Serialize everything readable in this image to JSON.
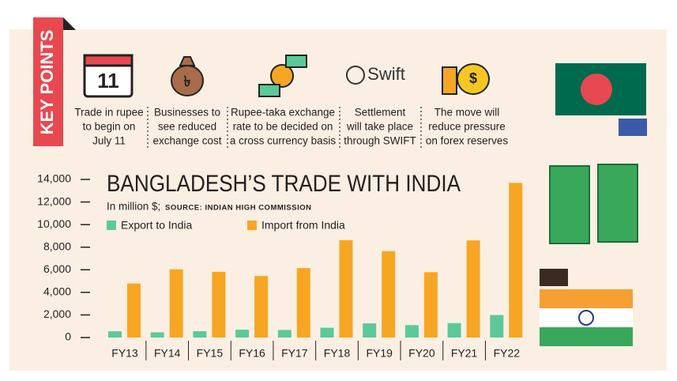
{
  "key_points": {
    "label": "KEY POINTS",
    "items": [
      {
        "icon_text": "11",
        "text": [
          "Trade in rupee",
          "to begin on",
          "July 11"
        ]
      },
      {
        "icon_text": "৳",
        "text": [
          "Businesses to",
          "see reduced",
          "exchange cost"
        ]
      },
      {
        "text": [
          "Rupee-taka exchange",
          "rate to be decided on",
          "a cross currency basis"
        ]
      },
      {
        "icon_text": "Swift",
        "text": [
          "Settlement",
          "will take place",
          "through SWIFT"
        ]
      },
      {
        "icon_text": "$",
        "text": [
          "The move will",
          "reduce pressure",
          "on forex reserves"
        ]
      }
    ]
  },
  "chart_data": {
    "type": "bar",
    "title": "BANGLADESH’S TRADE WITH INDIA",
    "subtitle": "In million $;",
    "source": "SOURCE: INDIAN HIGH COMMISSION",
    "categories": [
      "FY13",
      "FY14",
      "FY15",
      "FY16",
      "FY17",
      "FY18",
      "FY19",
      "FY20",
      "FY21",
      "FY22"
    ],
    "series": [
      {
        "name": "Export to India",
        "color": "#5cc99a",
        "values": [
          550,
          460,
          560,
          690,
          670,
          870,
          1250,
          1100,
          1280,
          1990
        ]
      },
      {
        "name": "Import from India",
        "color": "#f6a623",
        "values": [
          4780,
          6040,
          5820,
          5450,
          6150,
          8620,
          7650,
          5790,
          8600,
          13690
        ]
      }
    ],
    "ylim": [
      0,
      14000
    ],
    "yticks": [
      0,
      {
        "value": 2000,
        "label": "2,000"
      },
      {
        "value": 4000,
        "label": "4,000"
      },
      {
        "value": 6000,
        "label": "6,000"
      },
      {
        "value": 8000,
        "label": "8,000"
      },
      {
        "value": 10000,
        "label": "10,000"
      },
      {
        "value": 12000,
        "label": "12,000"
      },
      {
        "value": 14000,
        "label": "14,000"
      }
    ]
  }
}
